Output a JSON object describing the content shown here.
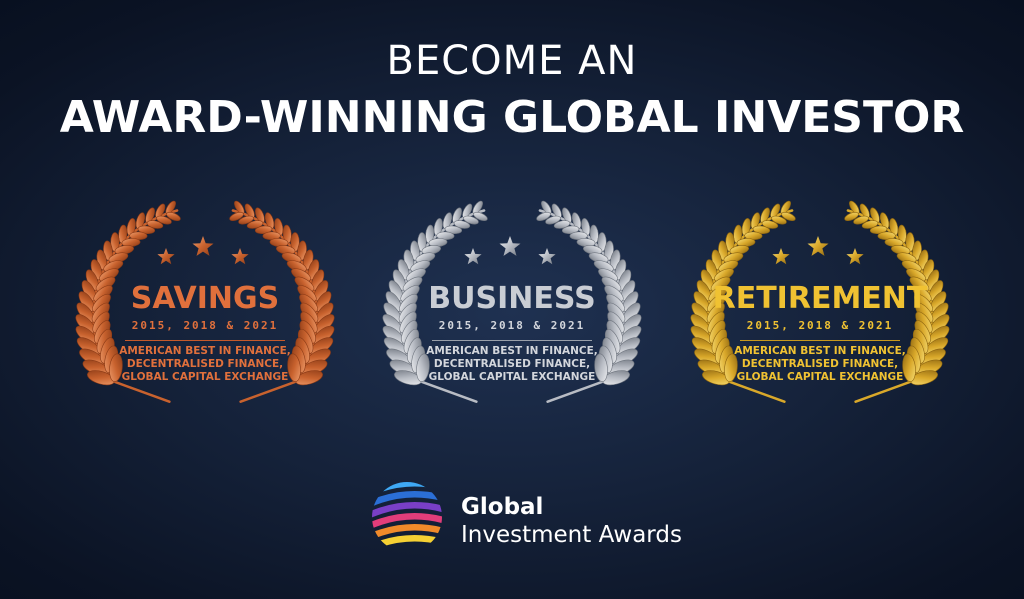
{
  "headline": {
    "line1": "BECOME AN",
    "line2": "AWARD-WINNING GLOBAL INVESTOR"
  },
  "awards": [
    {
      "title": "SAVINGS",
      "years": "2015, 2018 & 2021",
      "desc": [
        "AMERICAN BEST IN FINANCE,",
        "DECENTRALISED FINANCE,",
        "GLOBAL CAPITAL EXCHANGE"
      ],
      "stars": 3,
      "colors": {
        "dark": "#8a3a16",
        "mid": "#c8622e",
        "light": "#f0a070"
      }
    },
    {
      "title": "BUSINESS",
      "years": "2015, 2018 & 2021",
      "desc": [
        "AMERICAN BEST IN FINANCE,",
        "DECENTRALISED FINANCE,",
        "GLOBAL CAPITAL EXCHANGE"
      ],
      "stars": 3,
      "colors": {
        "dark": "#6d737d",
        "mid": "#b8bcc4",
        "light": "#f2f3f5"
      }
    },
    {
      "title": "RETIREMENT",
      "years": "2015, 2018 & 2021",
      "desc": [
        "AMERICAN BEST IN FINANCE,",
        "DECENTRALISED FINANCE,",
        "GLOBAL CAPITAL EXCHANGE"
      ],
      "stars": 3,
      "colors": {
        "dark": "#8c6410",
        "mid": "#d9a82a",
        "light": "#f8e07a"
      }
    }
  ],
  "logo": {
    "line1": "Global",
    "line2": "Investment Awards",
    "stripe_colors": [
      "#3fa9f5",
      "#2b6fd6",
      "#7a3fc7",
      "#e23d7a",
      "#f08a2a",
      "#f5d033"
    ]
  }
}
